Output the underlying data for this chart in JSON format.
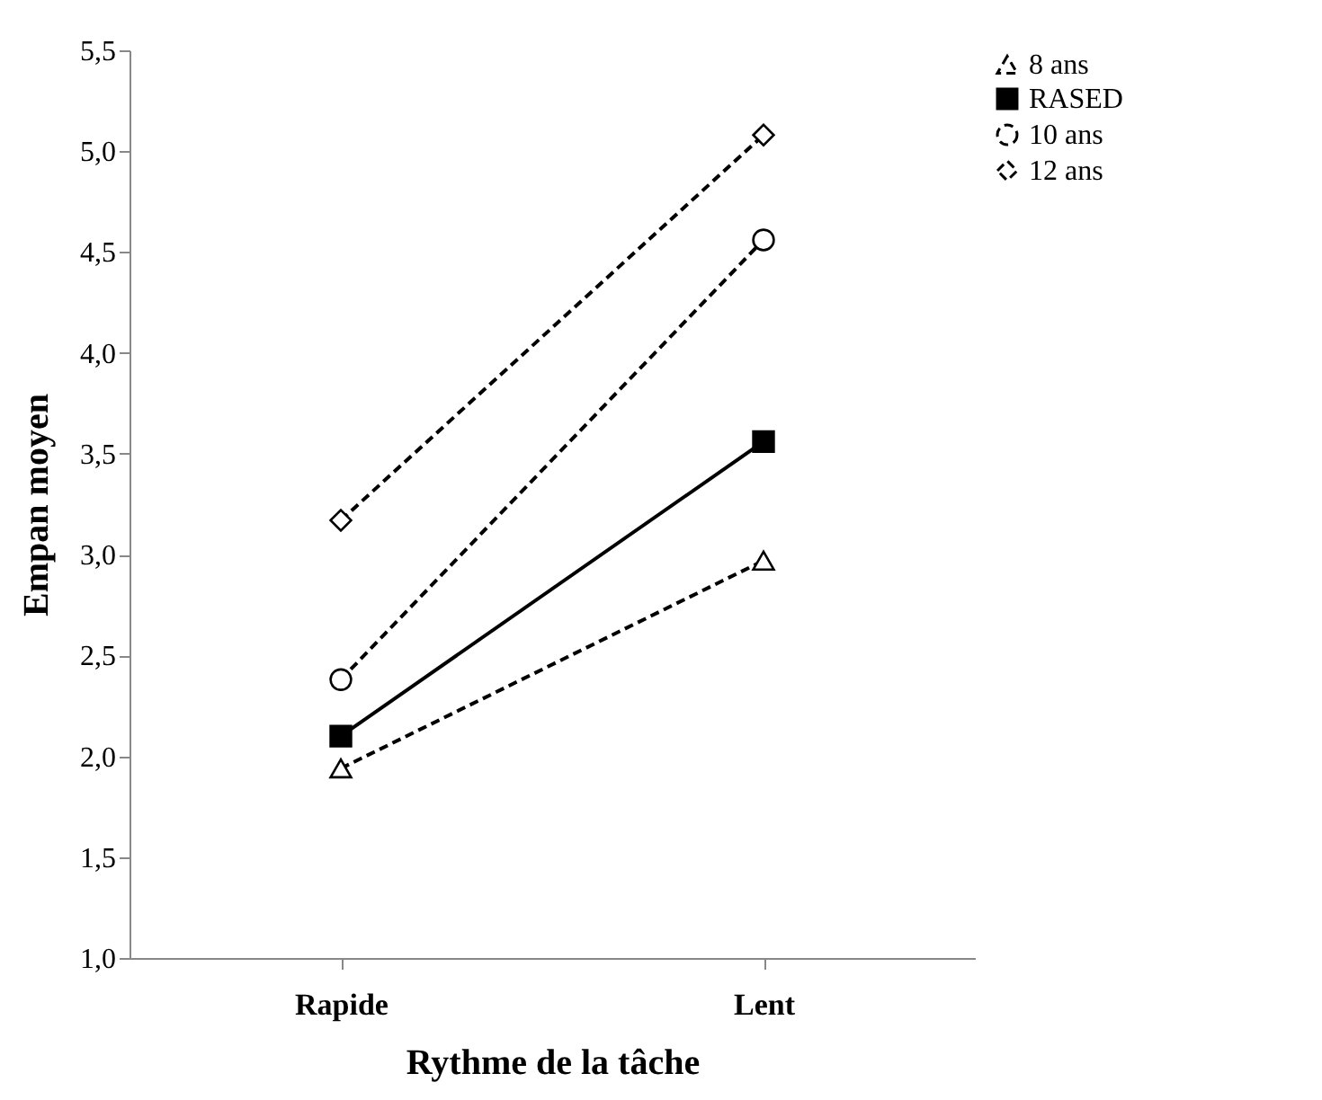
{
  "chart_data": {
    "type": "line",
    "xlabel": "Rythme de la tâche",
    "ylabel": "Empan moyen",
    "categories": [
      "Rapide",
      "Lent"
    ],
    "series": [
      {
        "name": "8 ans",
        "color": "#000000",
        "values": [
          1.94,
          2.97
        ],
        "marker": "triangle",
        "line_style": "dashed"
      },
      {
        "name": "RASED",
        "color": "#000000",
        "values": [
          2.1,
          3.56
        ],
        "marker": "square",
        "line_style": "solid"
      },
      {
        "name": "10 ans",
        "color": "#000000",
        "values": [
          2.38,
          4.56
        ],
        "marker": "circle",
        "line_style": "dashed"
      },
      {
        "name": "12 ans",
        "color": "#000000",
        "values": [
          3.17,
          5.08
        ],
        "marker": "diamond",
        "line_style": "dashed"
      }
    ],
    "ylim": [
      1,
      5.5
    ],
    "yticks": [
      {
        "value": 1,
        "label": "1,0"
      },
      {
        "value": 1.5,
        "label": "1,5"
      },
      {
        "value": 2,
        "label": "2,0"
      },
      {
        "value": 2.5,
        "label": "2,5"
      },
      {
        "value": 3,
        "label": "3,0"
      },
      {
        "value": 3.5,
        "label": "3,5"
      },
      {
        "value": 4,
        "label": "4,0"
      },
      {
        "value": 4.5,
        "label": "4,5"
      },
      {
        "value": 5,
        "label": "5,0"
      },
      {
        "value": 5.5,
        "label": "5,5"
      }
    ],
    "grid": false,
    "legend": "right"
  }
}
